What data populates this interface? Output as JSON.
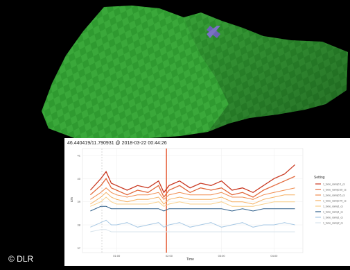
{
  "terrain": {
    "surface_color": "#3aa83a",
    "marker_color": "#6b63b5",
    "background": "#000000",
    "marker_icon": "x-marker-icon"
  },
  "plot": {
    "title": "46.440419/11.790931 @ 2018-03-22 00:44:26",
    "ylabel": "cm",
    "xlabel": "Time"
  },
  "chart_data": {
    "type": "line",
    "title": "46.440419/11.790931 @ 2018-03-22 00:44:26",
    "xlabel": "Time",
    "ylabel": "cm",
    "x_ticks": [
      "01:00",
      "02:00",
      "03:00",
      "04:00"
    ],
    "y_ticks": [
      "37",
      "38",
      "39",
      "40",
      "41"
    ],
    "ylim": [
      36.8,
      41.3
    ],
    "xlim": [
      0.35,
      4.55
    ],
    "x": [
      0.5,
      0.7,
      0.8,
      0.9,
      1.0,
      1.2,
      1.4,
      1.6,
      1.8,
      1.9,
      2.0,
      2.2,
      2.4,
      2.6,
      2.8,
      3.0,
      3.2,
      3.4,
      3.6,
      3.8,
      4.0,
      4.2,
      4.4
    ],
    "series": [
      {
        "name": "1_torso_damp0.1_cs",
        "color": "#c9371f",
        "values": [
          39.5,
          40.0,
          40.3,
          39.8,
          39.7,
          39.5,
          39.7,
          39.6,
          39.9,
          39.4,
          39.7,
          39.9,
          39.6,
          39.8,
          39.7,
          39.9,
          39.5,
          39.6,
          39.4,
          39.7,
          40.0,
          40.2,
          40.6
        ]
      },
      {
        "name": "1_torso_damp0.25_cs",
        "color": "#e2673a",
        "values": [
          39.3,
          39.7,
          40.0,
          39.6,
          39.5,
          39.3,
          39.5,
          39.4,
          39.7,
          39.2,
          39.5,
          39.7,
          39.4,
          39.6,
          39.5,
          39.6,
          39.3,
          39.4,
          39.2,
          39.5,
          39.7,
          39.9,
          40.1
        ]
      },
      {
        "name": "1_torso_damp0.5_cs",
        "color": "#f08c4f",
        "values": [
          39.1,
          39.4,
          39.6,
          39.4,
          39.3,
          39.2,
          39.3,
          39.3,
          39.4,
          39.1,
          39.3,
          39.4,
          39.3,
          39.3,
          39.3,
          39.4,
          39.2,
          39.2,
          39.1,
          39.3,
          39.4,
          39.5,
          39.6
        ]
      },
      {
        "name": "1_torso_damp0.75_cs",
        "color": "#f5b062",
        "values": [
          38.9,
          39.2,
          39.4,
          39.2,
          39.1,
          39.0,
          39.1,
          39.1,
          39.2,
          38.9,
          39.1,
          39.2,
          39.1,
          39.1,
          39.1,
          39.2,
          39.0,
          39.0,
          38.9,
          39.1,
          39.2,
          39.3,
          39.3
        ]
      },
      {
        "name": "1_torso_damp1_cs",
        "color": "#f8cf8a",
        "values": [
          38.8,
          39.0,
          39.2,
          39.0,
          38.9,
          38.9,
          38.9,
          38.9,
          39.0,
          38.8,
          38.9,
          39.0,
          38.9,
          38.9,
          38.9,
          39.0,
          38.8,
          38.8,
          38.8,
          38.9,
          39.0,
          39.0,
          39.0
        ]
      },
      {
        "name": "1_torso_damp1_cs",
        "color": "#2f5f8a",
        "values": [
          38.6,
          38.8,
          38.8,
          38.7,
          38.7,
          38.7,
          38.7,
          38.7,
          38.7,
          38.6,
          38.7,
          38.7,
          38.7,
          38.7,
          38.7,
          38.7,
          38.6,
          38.7,
          38.6,
          38.7,
          38.7,
          38.7,
          38.7
        ]
      },
      {
        "name": "1_torso_damp1_cs",
        "color": "#a7c8e4",
        "values": [
          37.9,
          38.1,
          38.2,
          38.0,
          38.0,
          38.1,
          37.9,
          38.0,
          38.1,
          37.9,
          38.0,
          38.1,
          37.9,
          38.0,
          38.1,
          37.9,
          38.0,
          38.1,
          37.9,
          38.0,
          38.0,
          38.1,
          38.0
        ]
      },
      {
        "name": "1_torso_damp2_cs",
        "color": "#d9e4ec",
        "values": [
          37.7,
          37.8,
          37.8,
          37.7,
          37.7,
          37.7,
          37.7,
          37.7,
          37.7,
          37.7,
          37.7,
          37.7,
          37.7,
          37.7,
          37.7,
          37.7,
          37.7,
          37.7,
          37.7,
          37.7,
          37.7,
          37.7,
          37.7
        ]
      }
    ],
    "vlines": [
      {
        "x": 0.72,
        "color": "#bbbbbb",
        "style": "dashed"
      },
      {
        "x": 1.95,
        "color": "#e4572e",
        "style": "solid"
      }
    ],
    "legend": {
      "title": "Setting",
      "position": "right",
      "entries": [
        "1_torso_damp0.1_cs",
        "1_torso_damp0.25_cs",
        "1_torso_damp0.5_cs",
        "1_torso_damp0.75_cs",
        "1_torso_damp1_cs",
        "1_torso_damp1_cs",
        "1_torso_damp1_cs",
        "1_torso_damp2_cs"
      ]
    },
    "grid": true
  },
  "footer": {
    "copyright": "© DLR"
  }
}
